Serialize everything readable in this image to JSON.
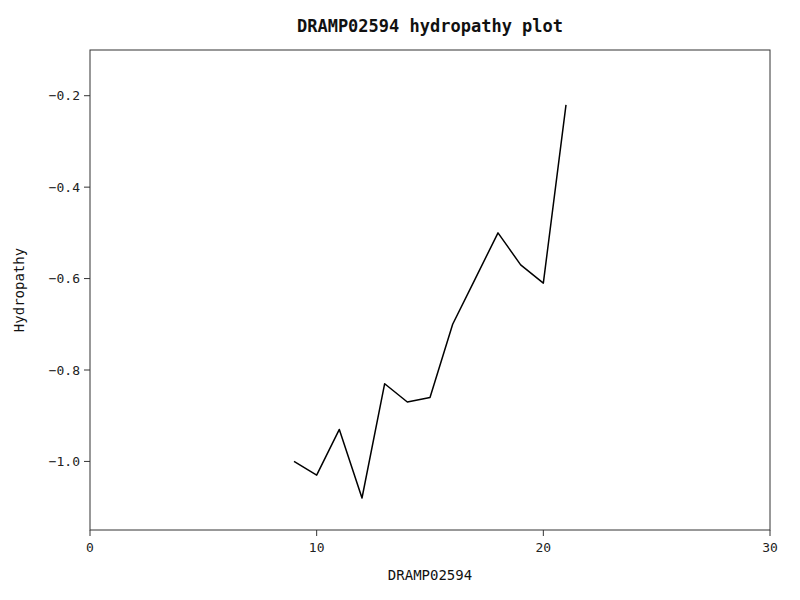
{
  "chart_data": {
    "type": "line",
    "title": "DRAMP02594 hydropathy plot",
    "xlabel": "DRAMP02594",
    "ylabel": "Hydropathy",
    "x": [
      9,
      10,
      11,
      12,
      13,
      14,
      15,
      16,
      17,
      18,
      19,
      20,
      21
    ],
    "values": [
      -1.0,
      -1.03,
      -0.93,
      -1.08,
      -0.83,
      -0.87,
      -0.86,
      -0.7,
      -0.6,
      -0.5,
      -0.57,
      -0.61,
      -0.22
    ],
    "color": "#000000",
    "xlim": [
      0,
      30
    ],
    "ylim": [
      -1.15,
      -0.1
    ],
    "xticks": [
      0,
      10,
      20,
      30
    ],
    "yticks": [
      {
        "value": -1.0,
        "label": "−1.0"
      },
      {
        "value": -0.8,
        "label": "−0.8"
      },
      {
        "value": -0.6,
        "label": "−0.6"
      },
      {
        "value": -0.4,
        "label": "−0.4"
      },
      {
        "value": -0.2,
        "label": "−0.2"
      }
    ],
    "grid": false
  }
}
